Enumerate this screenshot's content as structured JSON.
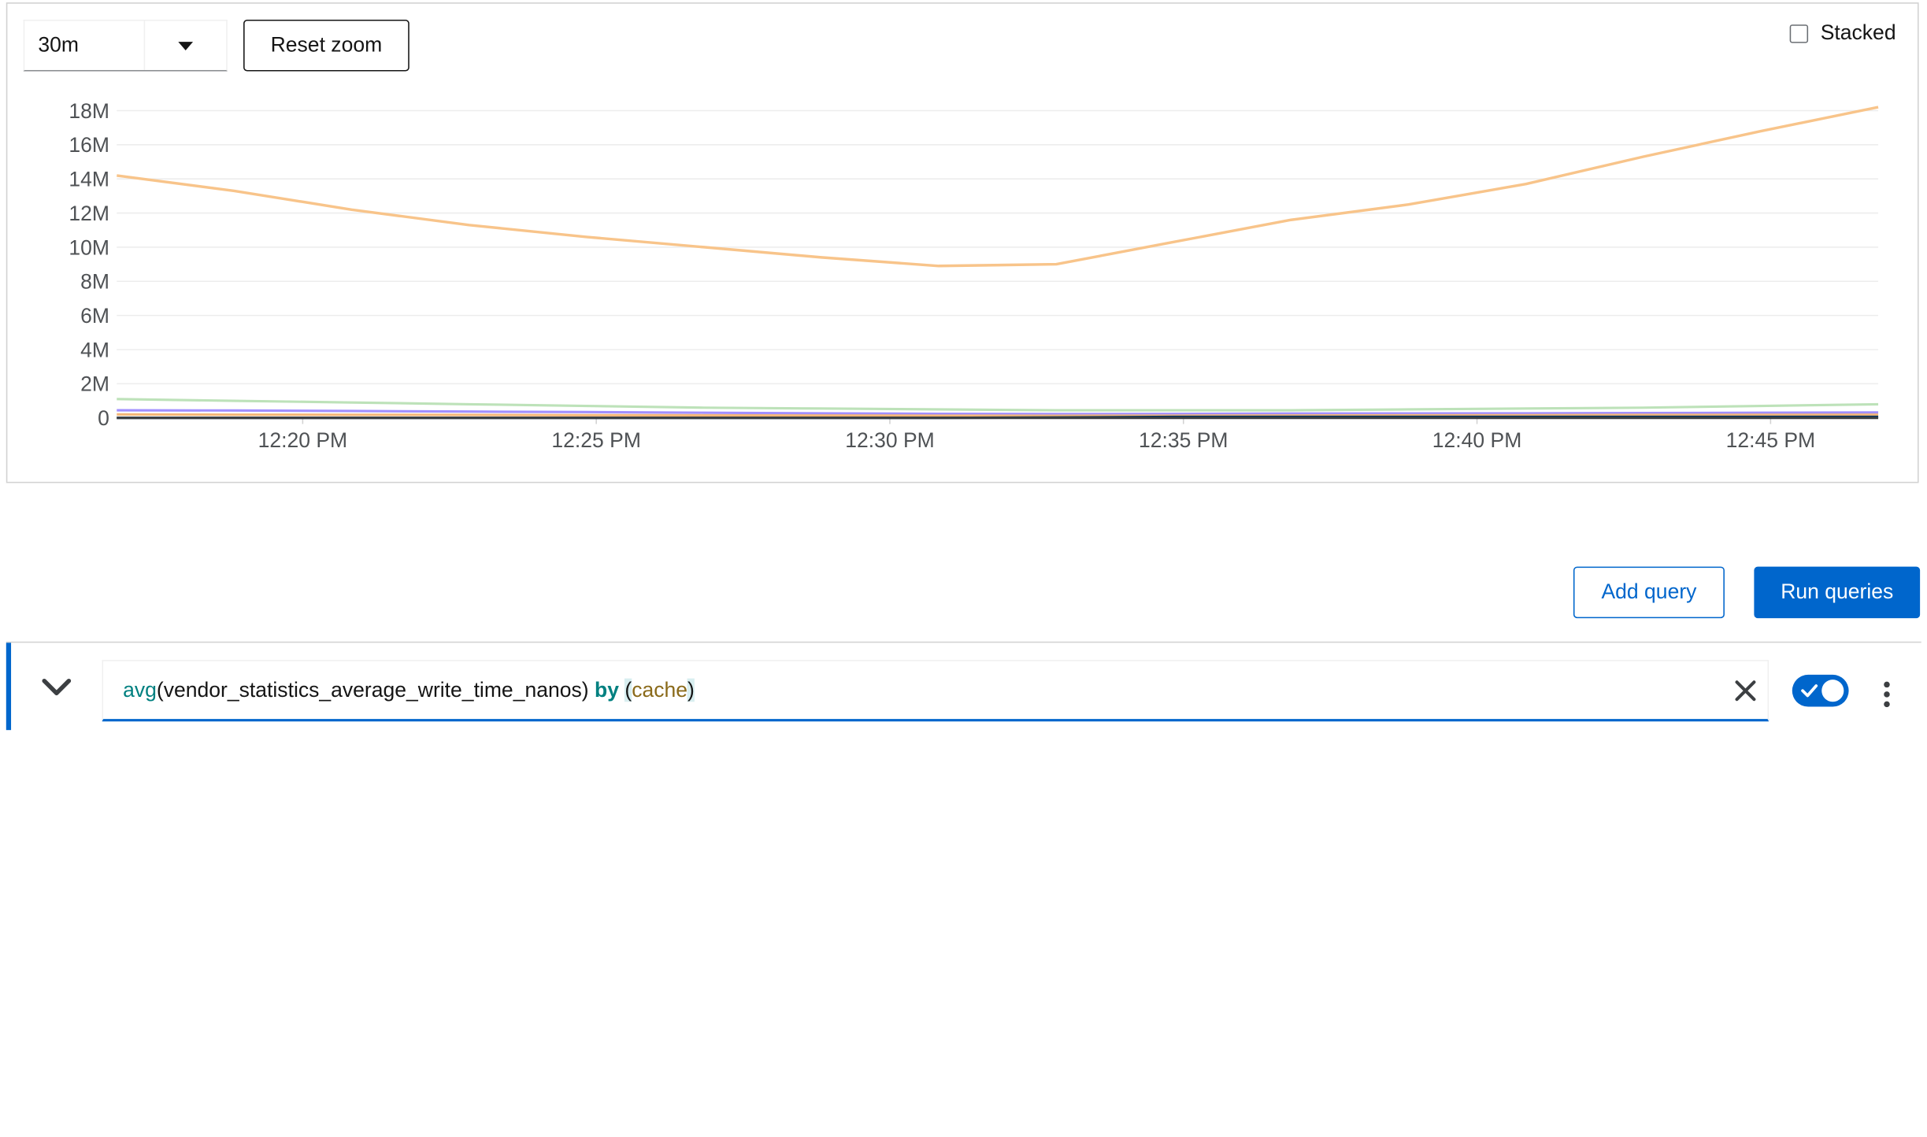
{
  "toolbar": {
    "time_range_value": "30m",
    "reset_zoom_label": "Reset zoom",
    "stacked_label": "Stacked",
    "stacked_checked": false
  },
  "chart_data": {
    "type": "line",
    "x_tick_labels": [
      "12:20 PM",
      "12:25 PM",
      "12:30 PM",
      "12:35 PM",
      "12:40 PM",
      "12:45 PM"
    ],
    "x_range": [
      "12:16:50",
      "12:46:50"
    ],
    "y_tick_labels": [
      "0",
      "2M",
      "4M",
      "6M",
      "8M",
      "10M",
      "12M",
      "14M",
      "16M",
      "18M"
    ],
    "ylim": [
      0,
      18000000
    ],
    "grid": true,
    "stacked": false,
    "x_minutes_after_12_16": [
      0,
      2,
      4,
      6,
      8,
      10,
      12,
      14,
      16,
      18,
      20,
      22,
      24,
      26,
      28,
      30
    ],
    "series": [
      {
        "color": "#f8c48a",
        "values": [
          14200000,
          13300000,
          12200000,
          11300000,
          10600000,
          10000000,
          9400000,
          8900000,
          9000000,
          10300000,
          11600000,
          12500000,
          13700000,
          15300000,
          16800000,
          18200000
        ]
      },
      {
        "color": "#bde2b9",
        "values": [
          1100000,
          1000000,
          900000,
          800000,
          700000,
          600000,
          550000,
          500000,
          450000,
          450000,
          450000,
          500000,
          550000,
          600000,
          700000,
          800000
        ]
      },
      {
        "color": "#a18fff",
        "values": [
          450000,
          430000,
          400000,
          370000,
          340000,
          300000,
          270000,
          240000,
          220000,
          230000,
          250000,
          260000,
          270000,
          280000,
          300000,
          320000
        ]
      },
      {
        "color": "#f4b678",
        "values": [
          200000,
          190000,
          180000,
          170000,
          160000,
          150000,
          140000,
          130000,
          120000,
          130000,
          140000,
          150000,
          160000,
          170000,
          180000,
          190000
        ]
      },
      {
        "color": "#003366",
        "values": [
          0,
          0,
          0,
          0,
          0,
          0,
          0,
          0,
          20000,
          60000,
          60000,
          60000,
          60000,
          60000,
          60000,
          60000
        ]
      },
      {
        "color": "#3c3f42",
        "values": [
          0,
          0,
          0,
          0,
          0,
          0,
          0,
          0,
          0,
          0,
          0,
          0,
          0,
          0,
          0,
          0
        ]
      }
    ]
  },
  "actions": {
    "add_query_label": "Add query",
    "run_queries_label": "Run queries"
  },
  "query": {
    "fn": "avg",
    "open": "(",
    "metric": "vendor_statistics_average_write_time_nanos",
    "close": ")",
    "by_kw": "by",
    "label_open": "(",
    "label": "cache",
    "label_close": ")",
    "enabled": true
  },
  "colors": {
    "accent": "#0066cc",
    "grid": "#ededed",
    "axis": "#d2d2d2"
  }
}
